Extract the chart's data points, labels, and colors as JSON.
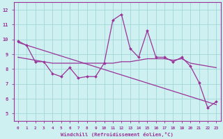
{
  "xlabel": "Windchill (Refroidissement éolien,°C)",
  "xlim": [
    -0.5,
    23.5
  ],
  "ylim": [
    4.5,
    12.5
  ],
  "xticks": [
    0,
    1,
    2,
    3,
    4,
    5,
    6,
    7,
    8,
    9,
    10,
    11,
    12,
    13,
    14,
    15,
    16,
    17,
    18,
    19,
    20,
    21,
    22,
    23
  ],
  "yticks": [
    5,
    6,
    7,
    8,
    9,
    10,
    11,
    12
  ],
  "bg_color": "#cff0f0",
  "line_color": "#993399",
  "grid_color": "#a0d8d8",
  "line1_x": [
    0,
    1,
    2,
    3,
    4,
    5,
    6,
    7,
    8,
    9,
    10,
    11,
    12,
    13,
    14,
    15,
    16,
    17,
    18,
    19,
    20,
    21,
    22,
    23
  ],
  "line1_y": [
    9.9,
    9.6,
    8.5,
    8.5,
    7.7,
    7.5,
    8.1,
    7.4,
    7.5,
    7.5,
    8.4,
    11.3,
    11.7,
    9.4,
    8.8,
    10.6,
    8.8,
    8.8,
    8.5,
    8.8,
    8.2,
    7.1,
    5.4,
    5.8
  ],
  "line2_x": [
    0,
    1,
    2,
    3,
    4,
    5,
    6,
    7,
    8,
    9,
    10,
    11,
    12,
    13,
    14,
    15,
    16,
    17,
    18,
    19,
    20,
    21,
    22,
    23
  ],
  "line2_y": [
    8.8,
    8.7,
    8.6,
    8.5,
    8.4,
    8.4,
    8.4,
    8.4,
    8.4,
    8.4,
    8.4,
    8.4,
    8.5,
    8.5,
    8.6,
    8.7,
    8.7,
    8.7,
    8.6,
    8.7,
    8.4,
    8.3,
    8.2,
    8.1
  ],
  "trend_x": [
    0,
    23
  ],
  "trend_y": [
    9.8,
    5.6
  ]
}
